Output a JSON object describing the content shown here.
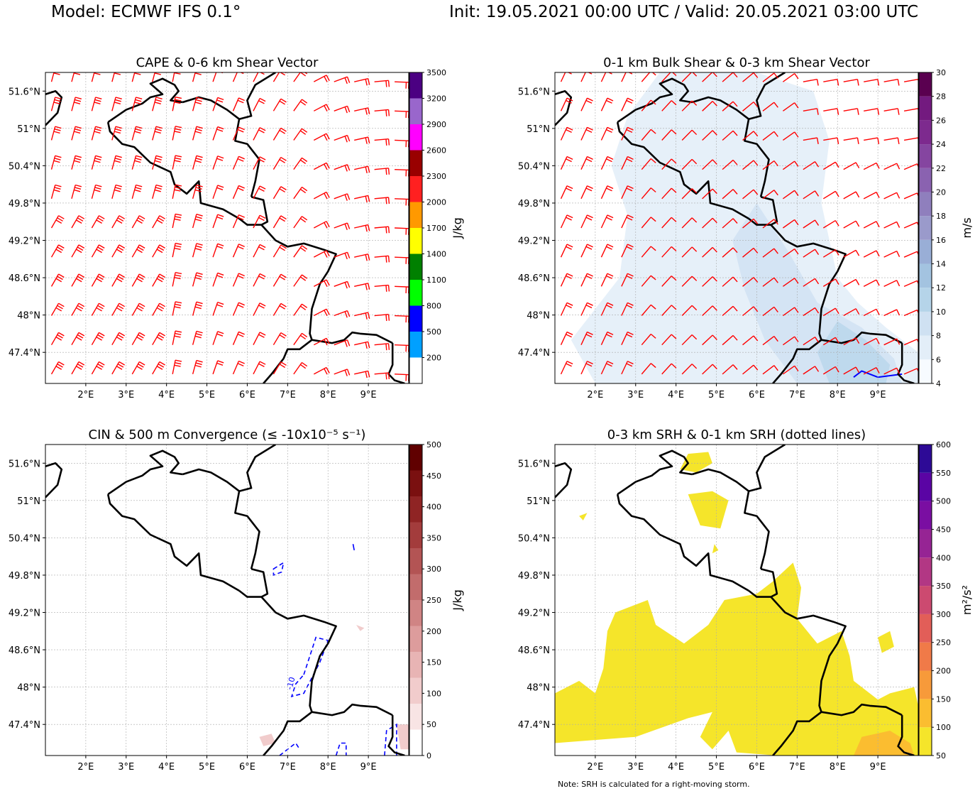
{
  "header": {
    "model": "Model: ECMWF IFS 0.1°",
    "valid": "Init: 19.05.2021 00:00 UTC / Valid: 20.05.2021 03:00 UTC"
  },
  "note": "Note: SRH is calculated for a right-moving storm.",
  "chart_data": [
    {
      "type": "heatmap",
      "title": "CAPE & 0-6 km Shear Vector",
      "xlabel": "",
      "ylabel": "",
      "x_ticks": [
        "2°E",
        "3°E",
        "4°E",
        "5°E",
        "6°E",
        "7°E",
        "8°E",
        "9°E"
      ],
      "x_tick_values": [
        2,
        3,
        4,
        5,
        6,
        7,
        8,
        9
      ],
      "y_ticks": [
        "51.6°N",
        "51°N",
        "50.4°N",
        "49.8°N",
        "49.2°N",
        "48.6°N",
        "48°N",
        "47.4°N"
      ],
      "y_tick_values": [
        51.6,
        51.0,
        50.4,
        49.8,
        49.2,
        48.6,
        48.0,
        47.4
      ],
      "xlim": [
        1.0,
        10.0
      ],
      "ylim": [
        46.9,
        51.9
      ],
      "colorbar": {
        "label": "J/kg",
        "levels": [
          200,
          500,
          800,
          1100,
          1400,
          1700,
          2000,
          2300,
          2600,
          2900,
          3200,
          3500
        ],
        "tick_labels": [
          "200",
          "500",
          "800",
          "1100",
          "1400",
          "1700",
          "2000",
          "2300",
          "2600",
          "2900",
          "3200",
          "3500"
        ],
        "colors": [
          "#ffffff",
          "#00a0ff",
          "#0000ff",
          "#00ff00",
          "#008000",
          "#ffff00",
          "#ff9900",
          "#ff2020",
          "#990000",
          "#ff00ff",
          "#9966cc",
          "#4b0082"
        ]
      },
      "overlay": "red wind barbs (0-6 km shear vector)",
      "barb_color": "#ff0000"
    },
    {
      "type": "heatmap",
      "title": "0-1 km Bulk Shear & 0-3 km Shear Vector",
      "xlabel": "",
      "ylabel": "",
      "x_ticks": [
        "2°E",
        "3°E",
        "4°E",
        "5°E",
        "6°E",
        "7°E",
        "8°E",
        "9°E"
      ],
      "x_tick_values": [
        2,
        3,
        4,
        5,
        6,
        7,
        8,
        9
      ],
      "y_ticks": [
        "51.6°N",
        "51°N",
        "50.4°N",
        "49.8°N",
        "49.2°N",
        "48.6°N",
        "48°N",
        "47.4°N"
      ],
      "y_tick_values": [
        51.6,
        51.0,
        50.4,
        49.8,
        49.2,
        48.6,
        48.0,
        47.4
      ],
      "xlim": [
        1.0,
        10.0
      ],
      "ylim": [
        46.9,
        51.9
      ],
      "colorbar": {
        "label": "m/s",
        "levels": [
          4,
          6,
          8,
          10,
          12,
          14,
          16,
          18,
          20,
          22,
          24,
          26,
          28,
          30
        ],
        "tick_labels": [
          "4",
          "6",
          "8",
          "10",
          "12",
          "14",
          "16",
          "18",
          "20",
          "22",
          "24",
          "26",
          "28",
          "30"
        ],
        "colors": [
          "#f7fbff",
          "#e3eef8",
          "#cfe1f2",
          "#b5d4e9",
          "#a3c3e0",
          "#99aed6",
          "#9a9acb",
          "#8f7fbd",
          "#8a62b0",
          "#8545a0",
          "#7d2a8e",
          "#731a7f",
          "#5a0050"
        ]
      },
      "overlay": "red wind barbs (0-3 km shear vector)",
      "barb_color": "#ff0000"
    },
    {
      "type": "heatmap",
      "title": "CIN & 500 m Convergence (≤ -10x10⁻⁵ s⁻¹)",
      "xlabel": "",
      "ylabel": "",
      "x_ticks": [
        "2°E",
        "3°E",
        "4°E",
        "5°E",
        "6°E",
        "7°E",
        "8°E",
        "9°E"
      ],
      "x_tick_values": [
        2,
        3,
        4,
        5,
        6,
        7,
        8,
        9
      ],
      "y_ticks": [
        "51.6°N",
        "51°N",
        "50.4°N",
        "49.8°N",
        "49.2°N",
        "48.6°N",
        "48°N",
        "47.4°N"
      ],
      "y_tick_values": [
        51.6,
        51.0,
        50.4,
        49.8,
        49.2,
        48.6,
        48.0,
        47.4
      ],
      "xlim": [
        1.0,
        10.0
      ],
      "ylim": [
        46.9,
        51.9
      ],
      "colorbar": {
        "label": "J/kg",
        "levels": [
          0,
          50,
          100,
          150,
          200,
          250,
          300,
          350,
          400,
          450,
          500
        ],
        "tick_labels": [
          "0",
          "50",
          "100",
          "150",
          "200",
          "250",
          "300",
          "350",
          "400",
          "450",
          "500"
        ],
        "colors": [
          "#ffffff",
          "#f8e4e4",
          "#f1cccc",
          "#e8b4b4",
          "#dd9c9c",
          "#d08484",
          "#c26c6c",
          "#b35454",
          "#a33c3c",
          "#8f2424",
          "#7a1010",
          "#600000"
        ]
      },
      "contour_label": "-10"
    },
    {
      "type": "heatmap",
      "title": "0-3 km SRH & 0-1 km SRH (dotted lines)",
      "xlabel": "",
      "ylabel": "",
      "x_ticks": [
        "2°E",
        "3°E",
        "4°E",
        "5°E",
        "6°E",
        "7°E",
        "8°E",
        "9°E"
      ],
      "x_tick_values": [
        2,
        3,
        4,
        5,
        6,
        7,
        8,
        9
      ],
      "y_ticks": [
        "51.6°N",
        "51°N",
        "50.4°N",
        "49.8°N",
        "49.2°N",
        "48.6°N",
        "48°N",
        "47.4°N"
      ],
      "y_tick_values": [
        51.6,
        51.0,
        50.4,
        49.8,
        49.2,
        48.6,
        48.0,
        47.4
      ],
      "xlim": [
        1.0,
        10.0
      ],
      "ylim": [
        46.9,
        51.9
      ],
      "colorbar": {
        "label": "m²/s²",
        "levels": [
          50,
          100,
          150,
          200,
          250,
          300,
          350,
          400,
          450,
          500,
          550,
          600
        ],
        "tick_labels": [
          "50",
          "100",
          "150",
          "200",
          "250",
          "300",
          "350",
          "400",
          "450",
          "500",
          "550",
          "600"
        ],
        "colors": [
          "#f5e52a",
          "#fbbd30",
          "#f79a3a",
          "#f07a48",
          "#e25e58",
          "#cc4a70",
          "#b23784",
          "#962494",
          "#7a0ea2",
          "#5a04a4",
          "#2d0a96"
        ]
      }
    }
  ]
}
